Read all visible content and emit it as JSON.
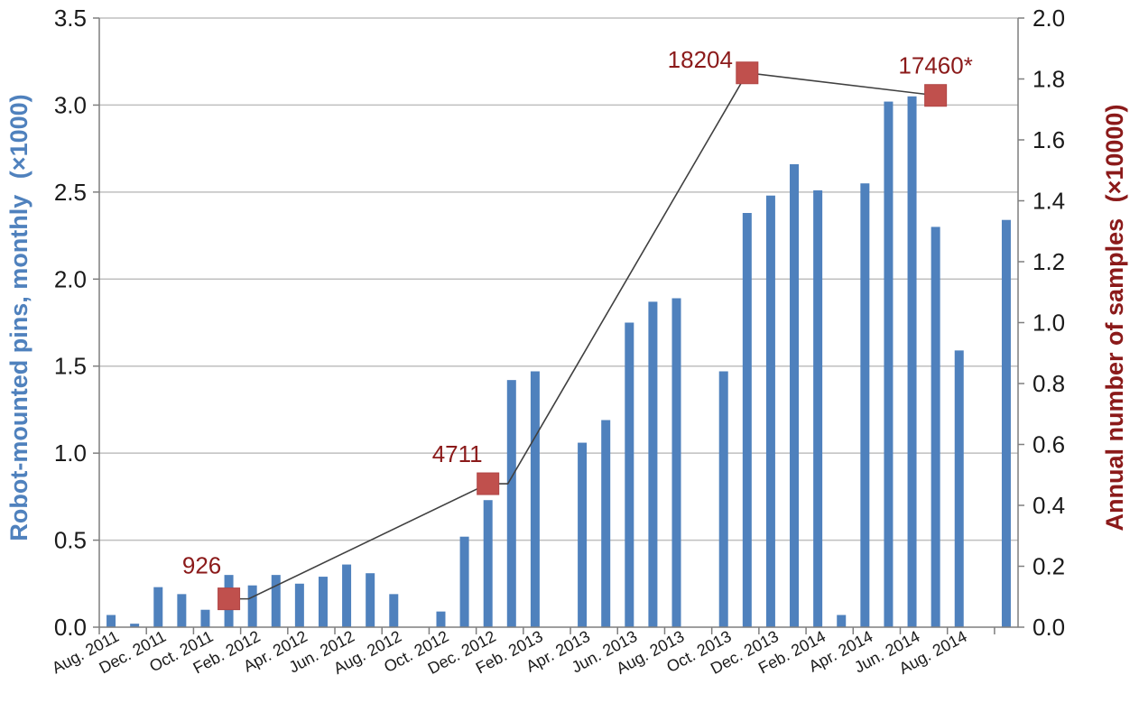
{
  "chart_data": {
    "type": "bar",
    "colors": {
      "bar": "#4f81bd",
      "line": "#404040",
      "marker": "#c0504d",
      "left_label": "#4f81bd",
      "right_label": "#8b1a1a",
      "grid": "#bfbfbf"
    },
    "ylabel": "Robot-mounted pins, monthly",
    "ylabel_unit": "(×1000)",
    "ylabel_right": "Annual number of samples",
    "ylabel_right_unit": "(×10000)",
    "ylim": [
      0,
      3.5
    ],
    "ylim_right": [
      0,
      2.0
    ],
    "yticks": [
      "0.0",
      "0.5",
      "1.0",
      "1.5",
      "2.0",
      "2.5",
      "3.0",
      "3.5"
    ],
    "yticks_right": [
      "0.0",
      "0.2",
      "0.4",
      "0.6",
      "0.8",
      "1.0",
      "1.2",
      "1.4",
      "1.6",
      "1.8",
      "2.0"
    ],
    "grid": true,
    "x_tick_labels": [
      "Aug. 2011",
      "Dec. 2011",
      "Oct. 2011",
      "Feb. 2012",
      "Apr. 2012",
      "Jun. 2012",
      "Aug. 2012",
      "Oct. 2012",
      "Dec. 2012",
      "Feb. 2013",
      "Apr. 2013",
      "Jun. 2013",
      "Aug. 2013",
      "Oct. 2013",
      "Dec. 2013",
      "Feb. 2014",
      "Apr. 2014",
      "Jun. 2014",
      "Aug. 2014"
    ],
    "monthly_bars": [
      0.07,
      0.02,
      0.23,
      0.19,
      0.1,
      0.3,
      0.24,
      0.3,
      0.25,
      0.29,
      0.36,
      0.31,
      0.19,
      0,
      0.09,
      0.52,
      0.73,
      1.42,
      1.47,
      0,
      1.06,
      1.19,
      1.75,
      1.87,
      1.89,
      0,
      1.47,
      2.38,
      2.48,
      2.66,
      2.51,
      0.07,
      2.55,
      3.02,
      3.05,
      2.3,
      1.59,
      0,
      2.34
    ],
    "annual_series": {
      "points": [
        {
          "bar_index": 5,
          "value": 0.093,
          "label": "926"
        },
        {
          "bar_index": 16,
          "value": 0.471,
          "label": "4711"
        },
        {
          "bar_index": 27,
          "value": 1.82,
          "label": "18204"
        },
        {
          "bar_index": 35,
          "value": 1.746,
          "label": "17460*"
        }
      ]
    }
  }
}
